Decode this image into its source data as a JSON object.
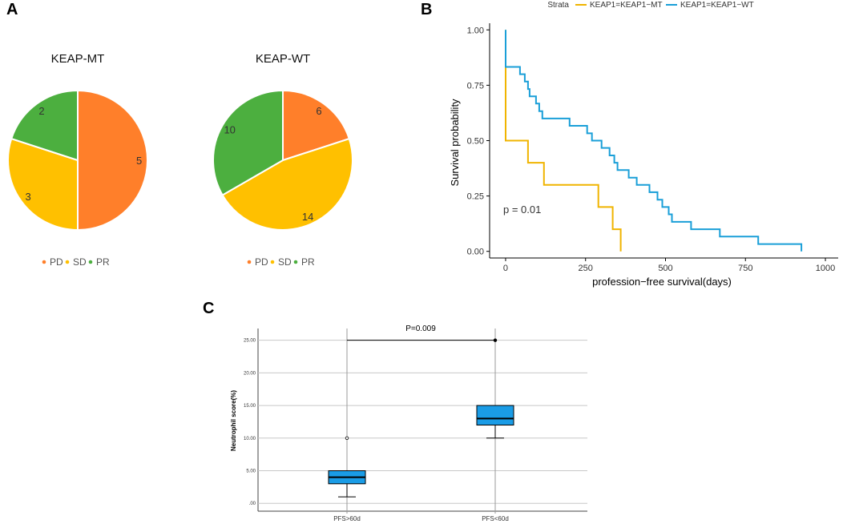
{
  "panels": {
    "a": "A",
    "b": "B",
    "c": "C"
  },
  "colors": {
    "PD": "#ff7f2a",
    "SD": "#ffc000",
    "PR": "#4caf3f",
    "mt": "#f0b400",
    "wt": "#1a9fd8",
    "box": "#1a9ce6"
  },
  "chart_data": [
    {
      "type": "pie",
      "title": "KEAP-MT",
      "categories": [
        "PD",
        "SD",
        "PR"
      ],
      "values": [
        5,
        3,
        2
      ],
      "legend": [
        "PD",
        "SD",
        "PR"
      ]
    },
    {
      "type": "pie",
      "title": "KEAP-WT",
      "categories": [
        "PD",
        "SD",
        "PR"
      ],
      "values": [
        6,
        14,
        10
      ],
      "legend": [
        "PD",
        "SD",
        "PR"
      ]
    },
    {
      "type": "line",
      "title": "",
      "legend_title": "Strata",
      "xlabel": "profession−free survival(days)",
      "ylabel": "Survival probability",
      "xlim": [
        -50,
        1040
      ],
      "ylim": [
        -0.03,
        1.03
      ],
      "xticks": [
        "0",
        "250",
        "500",
        "750",
        "1000"
      ],
      "yticks": [
        "0.00",
        "0.25",
        "0.50",
        "0.75",
        "1.00"
      ],
      "annotation": "p = 0.01",
      "series": [
        {
          "name": "KEAP1=KEAP1−MT",
          "x": [
            0,
            0,
            70,
            120,
            290,
            335,
            360,
            360
          ],
          "y": [
            1.0,
            0.5,
            0.4,
            0.3,
            0.2,
            0.1,
            0.1,
            0.0
          ]
        },
        {
          "name": "KEAP1=KEAP1−WT",
          "x": [
            0,
            0,
            45,
            60,
            70,
            75,
            90,
            95,
            105,
            110,
            115,
            120,
            200,
            255,
            270,
            300,
            325,
            340,
            350,
            355,
            360,
            385,
            410,
            430,
            450,
            475,
            490,
            510,
            520,
            555,
            580,
            670,
            680,
            790,
            910,
            925,
            925
          ],
          "y": [
            1.0,
            0.833,
            0.8,
            0.767,
            0.733,
            0.7,
            0.7,
            0.667,
            0.633,
            0.633,
            0.6,
            0.6,
            0.567,
            0.533,
            0.5,
            0.467,
            0.433,
            0.4,
            0.367,
            0.367,
            0.367,
            0.333,
            0.3,
            0.3,
            0.267,
            0.233,
            0.2,
            0.167,
            0.133,
            0.133,
            0.1,
            0.067,
            0.067,
            0.033,
            0.033,
            0.033,
            0.0
          ]
        }
      ]
    },
    {
      "type": "box",
      "title": "",
      "ylabel": "Neutrophil score(%)",
      "ylim": [
        -1.2,
        26.8
      ],
      "yticks": [
        ".00",
        "5.00",
        "10.00",
        "15.00",
        "20.00",
        "25.00"
      ],
      "categories": [
        "PFS>60d",
        "PFS<60d"
      ],
      "boxes": [
        {
          "name": "PFS>60d",
          "whisker_low": 1.0,
          "q1": 3.0,
          "median": 4.0,
          "q3": 5.0,
          "whisker_high": 5.0,
          "outliers": [
            10.0
          ]
        },
        {
          "name": "PFS<60d",
          "whisker_low": 10.0,
          "q1": 12.0,
          "median": 13.0,
          "q3": 15.0,
          "whisker_high": 15.0,
          "outliers": [
            25.0
          ]
        }
      ],
      "annotation": "P=0.009"
    }
  ]
}
